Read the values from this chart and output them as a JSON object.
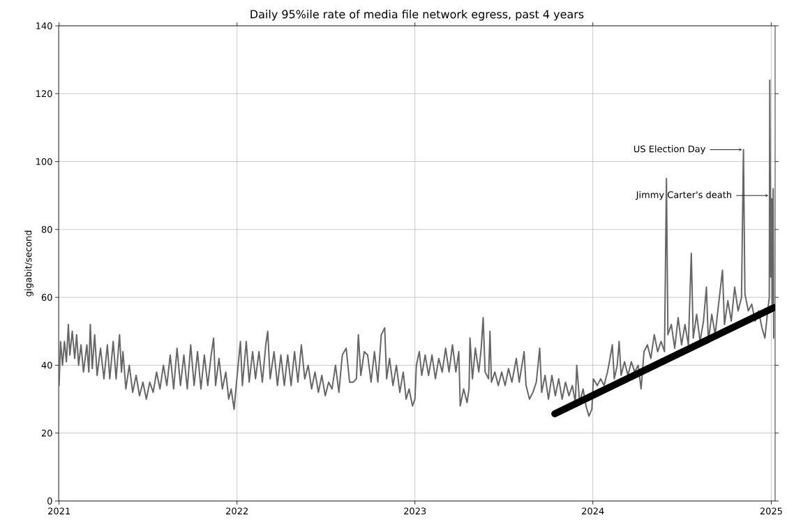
{
  "chart_data": {
    "type": "line",
    "title": "Daily 95%ile rate of media file network egress, past 4 years",
    "ylabel": "gigabit/second",
    "xlim": [
      "2020-12-31",
      "2025-01-09"
    ],
    "ylim": [
      0,
      140
    ],
    "xticks": [
      "2021",
      "2022",
      "2023",
      "2024",
      "2025"
    ],
    "yticks": [
      0,
      20,
      40,
      60,
      80,
      100,
      120,
      140
    ],
    "grid": true,
    "annotations": [
      {
        "text": "US Election Day",
        "x": "2024-11-05",
        "y": 103.5
      },
      {
        "text": "Jimmy Carter's death",
        "x": "2024-12-29",
        "y": 90
      }
    ],
    "series": [
      {
        "color": "#666666",
        "x": [
          "2021-01-01",
          "2021-01-04",
          "2021-01-08",
          "2021-01-12",
          "2021-01-16",
          "2021-01-20",
          "2021-01-23",
          "2021-01-28",
          "2021-02-02",
          "2021-02-06",
          "2021-02-10",
          "2021-02-15",
          "2021-02-20",
          "2021-02-27",
          "2021-03-03",
          "2021-03-06",
          "2021-03-10",
          "2021-03-15",
          "2021-03-20",
          "2021-03-27",
          "2021-04-03",
          "2021-04-10",
          "2021-04-15",
          "2021-04-22",
          "2021-04-28",
          "2021-05-05",
          "2021-05-09",
          "2021-05-12",
          "2021-05-18",
          "2021-05-25",
          "2021-06-01",
          "2021-06-08",
          "2021-06-15",
          "2021-06-22",
          "2021-06-29",
          "2021-07-06",
          "2021-07-13",
          "2021-07-20",
          "2021-07-27",
          "2021-08-03",
          "2021-08-10",
          "2021-08-17",
          "2021-08-24",
          "2021-08-31",
          "2021-09-07",
          "2021-09-14",
          "2021-09-21",
          "2021-09-28",
          "2021-10-05",
          "2021-10-12",
          "2021-10-19",
          "2021-10-26",
          "2021-11-02",
          "2021-11-09",
          "2021-11-14",
          "2021-11-18",
          "2021-11-25",
          "2021-12-02",
          "2021-12-09",
          "2021-12-15",
          "2021-12-20",
          "2021-12-26",
          "2021-12-31",
          "2022-01-04",
          "2022-01-08",
          "2022-01-12",
          "2022-01-20",
          "2022-01-26",
          "2022-02-02",
          "2022-02-08",
          "2022-02-15",
          "2022-02-22",
          "2022-03-01",
          "2022-03-05",
          "2022-03-10",
          "2022-03-18",
          "2022-03-25",
          "2022-04-01",
          "2022-04-08",
          "2022-04-15",
          "2022-04-22",
          "2022-04-29",
          "2022-05-06",
          "2022-05-13",
          "2022-05-20",
          "2022-05-27",
          "2022-06-03",
          "2022-06-10",
          "2022-06-17",
          "2022-06-24",
          "2022-07-01",
          "2022-07-08",
          "2022-07-15",
          "2022-07-22",
          "2022-07-29",
          "2022-08-05",
          "2022-08-13",
          "2022-08-20",
          "2022-08-27",
          "2022-09-03",
          "2022-09-07",
          "2022-09-12",
          "2022-09-19",
          "2022-09-26",
          "2022-10-03",
          "2022-10-10",
          "2022-10-17",
          "2022-10-24",
          "2022-10-31",
          "2022-11-04",
          "2022-11-10",
          "2022-11-17",
          "2022-11-24",
          "2022-12-01",
          "2022-12-08",
          "2022-12-14",
          "2022-12-20",
          "2022-12-27",
          "2023-01-01",
          "2023-01-04",
          "2023-01-10",
          "2023-01-15",
          "2023-01-22",
          "2023-01-29",
          "2023-02-05",
          "2023-02-12",
          "2023-02-19",
          "2023-02-26",
          "2023-03-05",
          "2023-03-12",
          "2023-03-19",
          "2023-03-26",
          "2023-04-01",
          "2023-04-04",
          "2023-04-11",
          "2023-04-18",
          "2023-04-22",
          "2023-04-24",
          "2023-04-29",
          "2023-05-05",
          "2023-05-12",
          "2023-05-17",
          "2023-05-21",
          "2023-05-25",
          "2023-06-01",
          "2023-06-04",
          "2023-06-07",
          "2023-06-14",
          "2023-06-21",
          "2023-06-28",
          "2023-07-05",
          "2023-07-12",
          "2023-07-19",
          "2023-07-28",
          "2023-08-03",
          "2023-08-13",
          "2023-08-17",
          "2023-08-24",
          "2023-08-31",
          "2023-09-07",
          "2023-09-14",
          "2023-09-18",
          "2023-09-25",
          "2023-10-02",
          "2023-10-09",
          "2023-10-16",
          "2023-10-23",
          "2023-10-30",
          "2023-11-06",
          "2023-11-13",
          "2023-11-20",
          "2023-11-26",
          "2023-11-29",
          "2023-12-05",
          "2023-12-12",
          "2023-12-18",
          "2023-12-24",
          "2023-12-30",
          "2024-01-02",
          "2024-01-10",
          "2024-01-17",
          "2024-01-24",
          "2024-01-31",
          "2024-02-04",
          "2024-02-10",
          "2024-02-14",
          "2024-02-20",
          "2024-02-24",
          "2024-02-28",
          "2024-03-06",
          "2024-03-13",
          "2024-03-20",
          "2024-03-27",
          "2024-04-03",
          "2024-04-09",
          "2024-04-15",
          "2024-04-22",
          "2024-04-29",
          "2024-05-06",
          "2024-05-13",
          "2024-05-20",
          "2024-05-27",
          "2024-05-31",
          "2024-06-03",
          "2024-06-10",
          "2024-06-17",
          "2024-06-24",
          "2024-07-01",
          "2024-07-08",
          "2024-07-15",
          "2024-07-21",
          "2024-07-25",
          "2024-08-01",
          "2024-08-08",
          "2024-08-15",
          "2024-08-21",
          "2024-08-25",
          "2024-09-01",
          "2024-09-08",
          "2024-09-15",
          "2024-09-23",
          "2024-09-27",
          "2024-10-04",
          "2024-10-11",
          "2024-10-18",
          "2024-10-25",
          "2024-11-01",
          "2024-11-05",
          "2024-11-08",
          "2024-11-15",
          "2024-11-22",
          "2024-11-29",
          "2024-12-06",
          "2024-12-13",
          "2024-12-19",
          "2024-12-24",
          "2024-12-28",
          "2024-12-29",
          "2024-12-31",
          "2025-01-02",
          "2025-01-03",
          "2025-01-04",
          "2025-01-05",
          "2025-01-06"
        ],
        "values": [
          34,
          47,
          40,
          47,
          41,
          52,
          43,
          50,
          42,
          49,
          40,
          46,
          38,
          46,
          38,
          52,
          39,
          49,
          37,
          45,
          36,
          46,
          36,
          47,
          36,
          49,
          38,
          44,
          33,
          40,
          32,
          37,
          31,
          35,
          30,
          35,
          32,
          38,
          33,
          40,
          34,
          43,
          33,
          45,
          34,
          43,
          33,
          46,
          34,
          44,
          33,
          43,
          34,
          43,
          48,
          34,
          42,
          33,
          38,
          30,
          33,
          27,
          35,
          41,
          47,
          34,
          47,
          35,
          44,
          36,
          44,
          35,
          46,
          50,
          36,
          44,
          34,
          43,
          34,
          43,
          34,
          44,
          35,
          46,
          36,
          40,
          33,
          38,
          32,
          37,
          31,
          35,
          33,
          40,
          32,
          43,
          45,
          35,
          35,
          36,
          49,
          37,
          44,
          43,
          35,
          44,
          35,
          49,
          51,
          36,
          42,
          34,
          40,
          32,
          38,
          30,
          33,
          28,
          30,
          40,
          44,
          37,
          43,
          37,
          43,
          36,
          42,
          38,
          45,
          38,
          46,
          38,
          44,
          28,
          33,
          29,
          33,
          48,
          36,
          45,
          38,
          45,
          54,
          38,
          36,
          50,
          35,
          38,
          34,
          38,
          34,
          39,
          35,
          42,
          35,
          44,
          34,
          30,
          32,
          35,
          45,
          32,
          37,
          30,
          37,
          31,
          36,
          30,
          35,
          31,
          34,
          29,
          40,
          29,
          33,
          28,
          25,
          27,
          36,
          34,
          36,
          34,
          38,
          41,
          46,
          36,
          40,
          47,
          37,
          41,
          37,
          41,
          38,
          40,
          33,
          44,
          46,
          42,
          49,
          44,
          47,
          44,
          95,
          49,
          52,
          45,
          54,
          46,
          52,
          46,
          73,
          48,
          55,
          47,
          53,
          63,
          47,
          55,
          49,
          58,
          68,
          52,
          59,
          53,
          63,
          56,
          60,
          103.5,
          61,
          56,
          58,
          53,
          56,
          51,
          48,
          55,
          60,
          124,
          66,
          89,
          58,
          79,
          92,
          48
        ]
      },
      {
        "type": "line",
        "color": "#000000",
        "x": [
          "2023-10-15",
          "2025-01-07"
        ],
        "values": [
          25.7,
          57
        ]
      }
    ]
  }
}
